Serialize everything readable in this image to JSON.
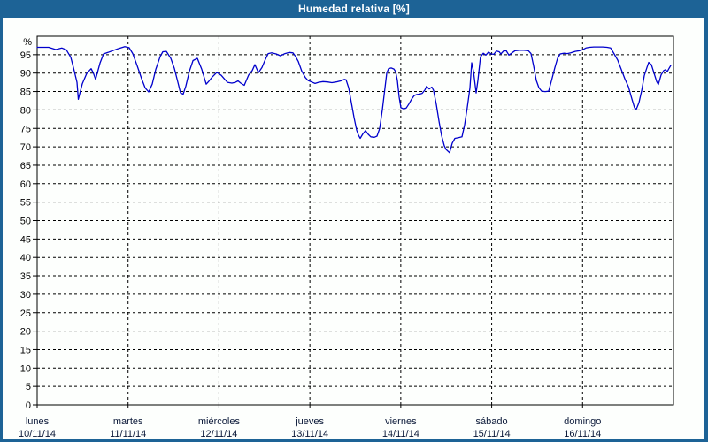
{
  "window": {
    "title": "Humedad relativa [%]"
  },
  "colors": {
    "titlebar_bg": "#1d6396",
    "frame_border": "#1d6396",
    "panel_bg": "#fdfffd",
    "plot_border": "#000000",
    "grid": "#000000",
    "axis_text": "#000000",
    "xlabel_text": "#0a1838",
    "title_text": "#ffffff",
    "line": "#0000cc"
  },
  "chart_data": {
    "type": "line",
    "title": "Humedad relativa [%]",
    "ylabel": "%",
    "ylim": [
      0,
      100
    ],
    "yticks": [
      0,
      5,
      10,
      15,
      20,
      25,
      30,
      35,
      40,
      45,
      50,
      55,
      60,
      65,
      70,
      75,
      80,
      85,
      90,
      95
    ],
    "xlim_days": [
      0,
      7
    ],
    "grid": "dashed",
    "legend": "none",
    "x_days": [
      {
        "name": "lunes",
        "date": "10/11/14"
      },
      {
        "name": "martes",
        "date": "11/11/14"
      },
      {
        "name": "miércoles",
        "date": "12/11/14"
      },
      {
        "name": "jueves",
        "date": "13/11/14"
      },
      {
        "name": "viernes",
        "date": "14/11/14"
      },
      {
        "name": "sábado",
        "date": "15/11/14"
      },
      {
        "name": "domingo",
        "date": "16/11/14"
      }
    ],
    "series": [
      {
        "name": "Humedad relativa",
        "color": "#0000cc",
        "points": [
          [
            0.0,
            97.0
          ],
          [
            0.127,
            97.0
          ],
          [
            0.204,
            96.4
          ],
          [
            0.273,
            96.8
          ],
          [
            0.321,
            96.3
          ],
          [
            0.37,
            94.3
          ],
          [
            0.399,
            91.5
          ],
          [
            0.438,
            87.5
          ],
          [
            0.453,
            82.9
          ],
          [
            0.497,
            87.1
          ],
          [
            0.545,
            89.9
          ],
          [
            0.594,
            91.2
          ],
          [
            0.618,
            90.0
          ],
          [
            0.643,
            88.3
          ],
          [
            0.691,
            92.7
          ],
          [
            0.73,
            95.2
          ],
          [
            0.779,
            95.6
          ],
          [
            0.886,
            96.6
          ],
          [
            0.964,
            97.2
          ],
          [
            1.012,
            96.9
          ],
          [
            1.051,
            95.3
          ],
          [
            1.1,
            92.0
          ],
          [
            1.149,
            88.5
          ],
          [
            1.188,
            86.0
          ],
          [
            1.227,
            84.9
          ],
          [
            1.266,
            87.0
          ],
          [
            1.305,
            91.0
          ],
          [
            1.353,
            94.5
          ],
          [
            1.382,
            95.8
          ],
          [
            1.421,
            95.9
          ],
          [
            1.47,
            94.0
          ],
          [
            1.509,
            91.3
          ],
          [
            1.548,
            87.5
          ],
          [
            1.577,
            84.6
          ],
          [
            1.606,
            84.3
          ],
          [
            1.636,
            86.5
          ],
          [
            1.675,
            90.5
          ],
          [
            1.714,
            93.4
          ],
          [
            1.762,
            94.0
          ],
          [
            1.811,
            91.0
          ],
          [
            1.86,
            87.0
          ],
          [
            1.889,
            87.8
          ],
          [
            1.928,
            89.0
          ],
          [
            1.976,
            90.2
          ],
          [
            2.025,
            89.4
          ],
          [
            2.064,
            88.3
          ],
          [
            2.093,
            87.5
          ],
          [
            2.142,
            87.3
          ],
          [
            2.181,
            87.5
          ],
          [
            2.21,
            87.9
          ],
          [
            2.239,
            87.3
          ],
          [
            2.278,
            86.7
          ],
          [
            2.327,
            89.5
          ],
          [
            2.366,
            90.7
          ],
          [
            2.395,
            92.3
          ],
          [
            2.434,
            90.1
          ],
          [
            2.473,
            91.5
          ],
          [
            2.512,
            93.8
          ],
          [
            2.541,
            95.3
          ],
          [
            2.58,
            95.5
          ],
          [
            2.629,
            95.2
          ],
          [
            2.677,
            94.7
          ],
          [
            2.726,
            95.3
          ],
          [
            2.775,
            95.6
          ],
          [
            2.814,
            95.5
          ],
          [
            2.843,
            94.5
          ],
          [
            2.872,
            93.2
          ],
          [
            2.911,
            90.5
          ],
          [
            2.95,
            88.8
          ],
          [
            2.979,
            88.0
          ],
          [
            3.018,
            87.6
          ],
          [
            3.057,
            87.2
          ],
          [
            3.096,
            87.5
          ],
          [
            3.145,
            87.7
          ],
          [
            3.193,
            87.6
          ],
          [
            3.242,
            87.4
          ],
          [
            3.291,
            87.6
          ],
          [
            3.339,
            87.9
          ],
          [
            3.378,
            88.3
          ],
          [
            3.398,
            88.2
          ],
          [
            3.427,
            86.0
          ],
          [
            3.456,
            82.0
          ],
          [
            3.485,
            78.0
          ],
          [
            3.515,
            74.5
          ],
          [
            3.534,
            73.2
          ],
          [
            3.554,
            72.3
          ],
          [
            3.583,
            73.5
          ],
          [
            3.612,
            74.4
          ],
          [
            3.641,
            73.4
          ],
          [
            3.67,
            72.7
          ],
          [
            3.709,
            72.6
          ],
          [
            3.739,
            72.9
          ],
          [
            3.768,
            75.0
          ],
          [
            3.797,
            80.0
          ],
          [
            3.826,
            86.0
          ],
          [
            3.846,
            90.0
          ],
          [
            3.865,
            91.2
          ],
          [
            3.894,
            91.4
          ],
          [
            3.924,
            91.1
          ],
          [
            3.943,
            90.4
          ],
          [
            3.962,
            88.0
          ],
          [
            3.982,
            83.5
          ],
          [
            4.001,
            80.6
          ],
          [
            4.031,
            80.3
          ],
          [
            4.06,
            80.5
          ],
          [
            4.089,
            81.6
          ],
          [
            4.118,
            82.9
          ],
          [
            4.147,
            83.9
          ],
          [
            4.177,
            84.2
          ],
          [
            4.206,
            84.3
          ],
          [
            4.235,
            84.5
          ],
          [
            4.264,
            85.4
          ],
          [
            4.284,
            86.4
          ],
          [
            4.313,
            85.7
          ],
          [
            4.342,
            86.2
          ],
          [
            4.361,
            85.3
          ],
          [
            4.391,
            81.5
          ],
          [
            4.42,
            77.0
          ],
          [
            4.449,
            73.0
          ],
          [
            4.478,
            70.3
          ],
          [
            4.498,
            69.3
          ],
          [
            4.537,
            68.4
          ],
          [
            4.566,
            71.0
          ],
          [
            4.595,
            72.3
          ],
          [
            4.634,
            72.5
          ],
          [
            4.673,
            72.7
          ],
          [
            4.702,
            76.0
          ],
          [
            4.731,
            80.5
          ],
          [
            4.761,
            86.0
          ],
          [
            4.78,
            92.8
          ],
          [
            4.8,
            90.5
          ],
          [
            4.829,
            84.6
          ],
          [
            4.848,
            88.0
          ],
          [
            4.877,
            94.4
          ],
          [
            4.907,
            95.4
          ],
          [
            4.936,
            94.9
          ],
          [
            4.965,
            95.7
          ],
          [
            4.994,
            95.2
          ],
          [
            5.023,
            95.1
          ],
          [
            5.053,
            96.0
          ],
          [
            5.082,
            95.8
          ],
          [
            5.101,
            95.2
          ],
          [
            5.131,
            96.0
          ],
          [
            5.16,
            96.1
          ],
          [
            5.189,
            94.9
          ],
          [
            5.218,
            95.4
          ],
          [
            5.257,
            96.1
          ],
          [
            5.306,
            96.2
          ],
          [
            5.355,
            96.2
          ],
          [
            5.403,
            96.1
          ],
          [
            5.433,
            95.3
          ],
          [
            5.462,
            91.9
          ],
          [
            5.491,
            88.0
          ],
          [
            5.52,
            86.0
          ],
          [
            5.549,
            85.1
          ],
          [
            5.588,
            85.0
          ],
          [
            5.627,
            85.1
          ],
          [
            5.657,
            87.9
          ],
          [
            5.695,
            91.5
          ],
          [
            5.725,
            94.0
          ],
          [
            5.754,
            95.2
          ],
          [
            5.793,
            95.4
          ],
          [
            5.832,
            95.3
          ],
          [
            5.87,
            95.5
          ],
          [
            5.919,
            95.9
          ],
          [
            5.968,
            96.1
          ],
          [
            5.997,
            96.3
          ],
          [
            6.036,
            96.8
          ],
          [
            6.075,
            97.0
          ],
          [
            6.124,
            97.1
          ],
          [
            6.172,
            97.1
          ],
          [
            6.221,
            97.1
          ],
          [
            6.27,
            97.0
          ],
          [
            6.309,
            96.8
          ],
          [
            6.348,
            95.2
          ],
          [
            6.387,
            93.5
          ],
          [
            6.426,
            91.0
          ],
          [
            6.465,
            88.5
          ],
          [
            6.504,
            86.3
          ],
          [
            6.542,
            83.0
          ],
          [
            6.572,
            80.6
          ],
          [
            6.591,
            80.2
          ],
          [
            6.62,
            82.0
          ],
          [
            6.65,
            85.3
          ],
          [
            6.679,
            89.3
          ],
          [
            6.708,
            91.5
          ],
          [
            6.727,
            92.9
          ],
          [
            6.757,
            92.3
          ],
          [
            6.786,
            90.0
          ],
          [
            6.815,
            87.7
          ],
          [
            6.834,
            86.9
          ],
          [
            6.864,
            89.5
          ],
          [
            6.893,
            90.7
          ],
          [
            6.912,
            90.9
          ],
          [
            6.932,
            90.4
          ],
          [
            6.951,
            91.3
          ],
          [
            6.971,
            92.1
          ]
        ]
      }
    ]
  }
}
